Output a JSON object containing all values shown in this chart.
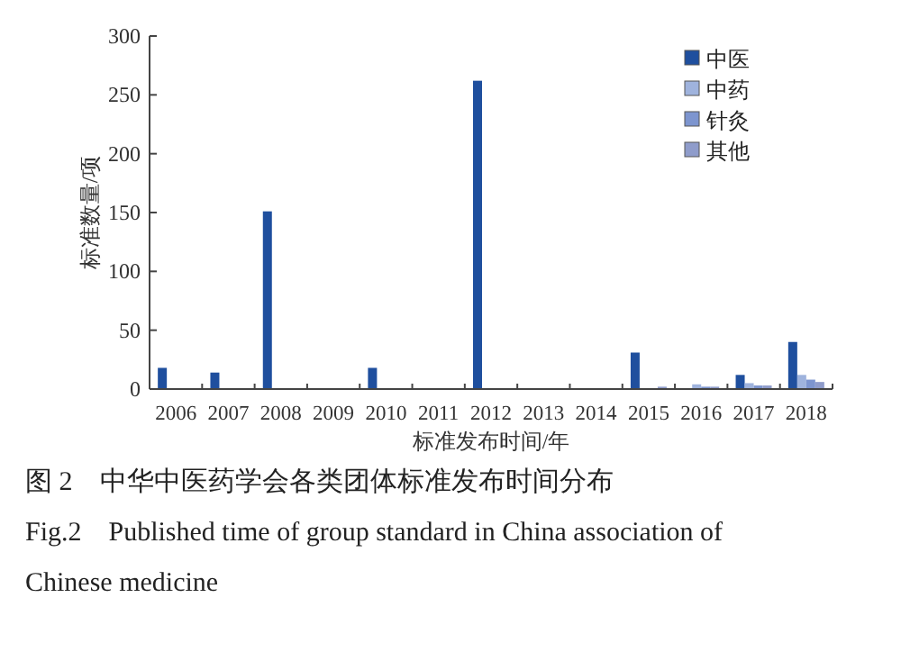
{
  "chart_data": {
    "type": "bar",
    "xlabel": "标准发布时间/年",
    "ylabel": "标准数量/项",
    "categories": [
      "2006",
      "2007",
      "2008",
      "2009",
      "2010",
      "2011",
      "2012",
      "2013",
      "2014",
      "2015",
      "2016",
      "2017",
      "2018"
    ],
    "series": [
      {
        "name": "中医",
        "color": "#1f4f9e",
        "values": [
          18,
          14,
          151,
          0,
          18,
          0,
          262,
          0,
          0,
          31,
          0,
          12,
          40
        ]
      },
      {
        "name": "中药",
        "color": "#9fb3dd",
        "values": [
          0,
          0,
          0,
          0,
          0,
          0,
          0,
          0,
          0,
          0,
          4,
          5,
          12
        ]
      },
      {
        "name": "针灸",
        "color": "#7d95cf",
        "values": [
          0,
          0,
          0,
          0,
          0,
          0,
          0,
          0,
          0,
          0,
          2,
          3,
          8
        ]
      },
      {
        "name": "其他",
        "color": "#8f9ccb",
        "values": [
          0,
          0,
          0,
          0,
          0,
          0,
          0,
          0,
          0,
          2,
          2,
          3,
          6
        ]
      }
    ],
    "ylim": [
      0,
      300
    ],
    "yticks": [
      0,
      50,
      100,
      150,
      200,
      250,
      300
    ],
    "legend": "top right",
    "grid": false,
    "annotations": [
      "图 2　中华中医药学会各类团体标准发布时间分布",
      "Fig.2　Published time of group standard in China association of Chinese medicine"
    ]
  }
}
